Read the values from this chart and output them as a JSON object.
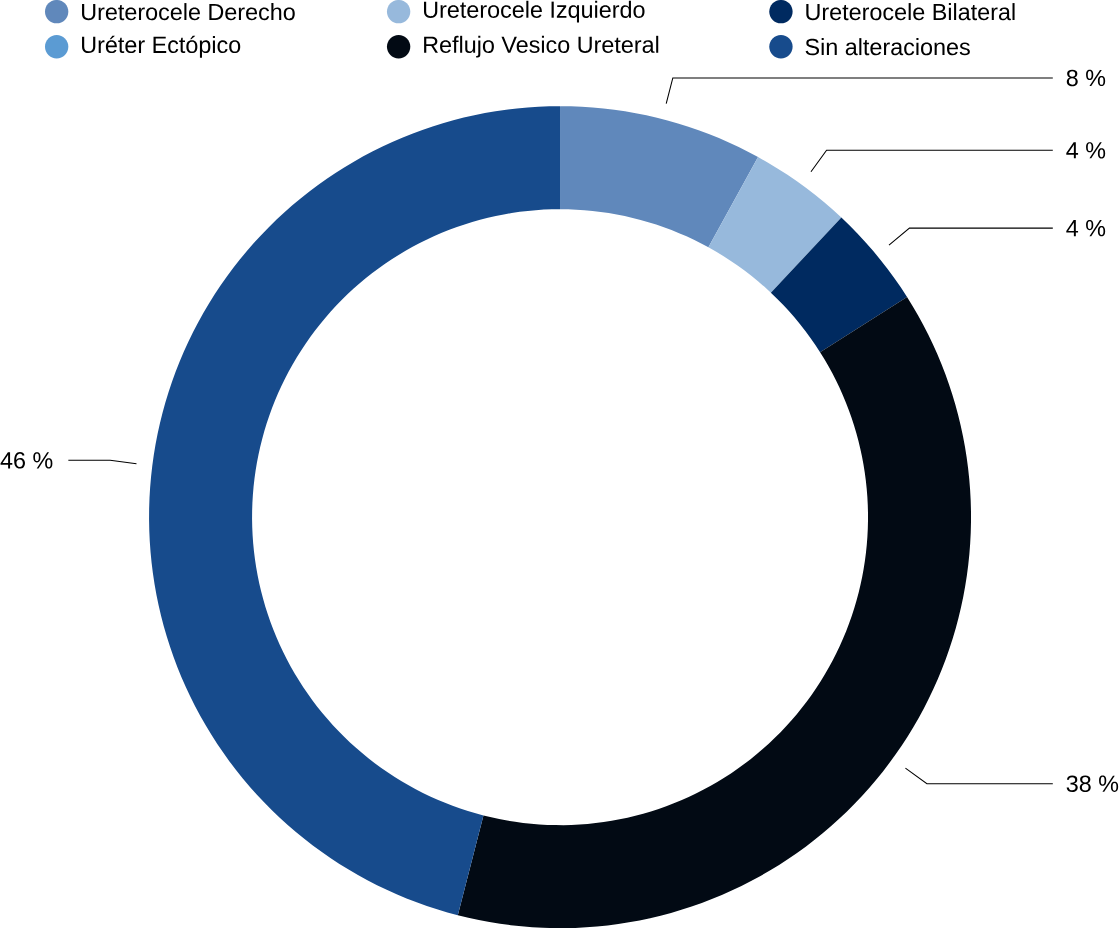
{
  "chart_data": {
    "type": "donut",
    "categories": [
      "Ureterocele Derecho",
      "Ureterocele Izquierdo",
      "Ureterocele Bilateral",
      "Uréter Ectópico",
      "Reflujo Vesico Ureteral",
      "Sin alteraciones"
    ],
    "values": [
      8,
      4,
      4,
      0,
      38,
      46
    ],
    "colors": [
      "#6088bb",
      "#97b9dc",
      "#002a60",
      "#5b9bd3",
      "#020a14",
      "#174b8c"
    ],
    "value_labels": [
      "8 %",
      "4 %",
      "4 %",
      null,
      "38 %",
      "46 %"
    ],
    "legend": "top"
  }
}
